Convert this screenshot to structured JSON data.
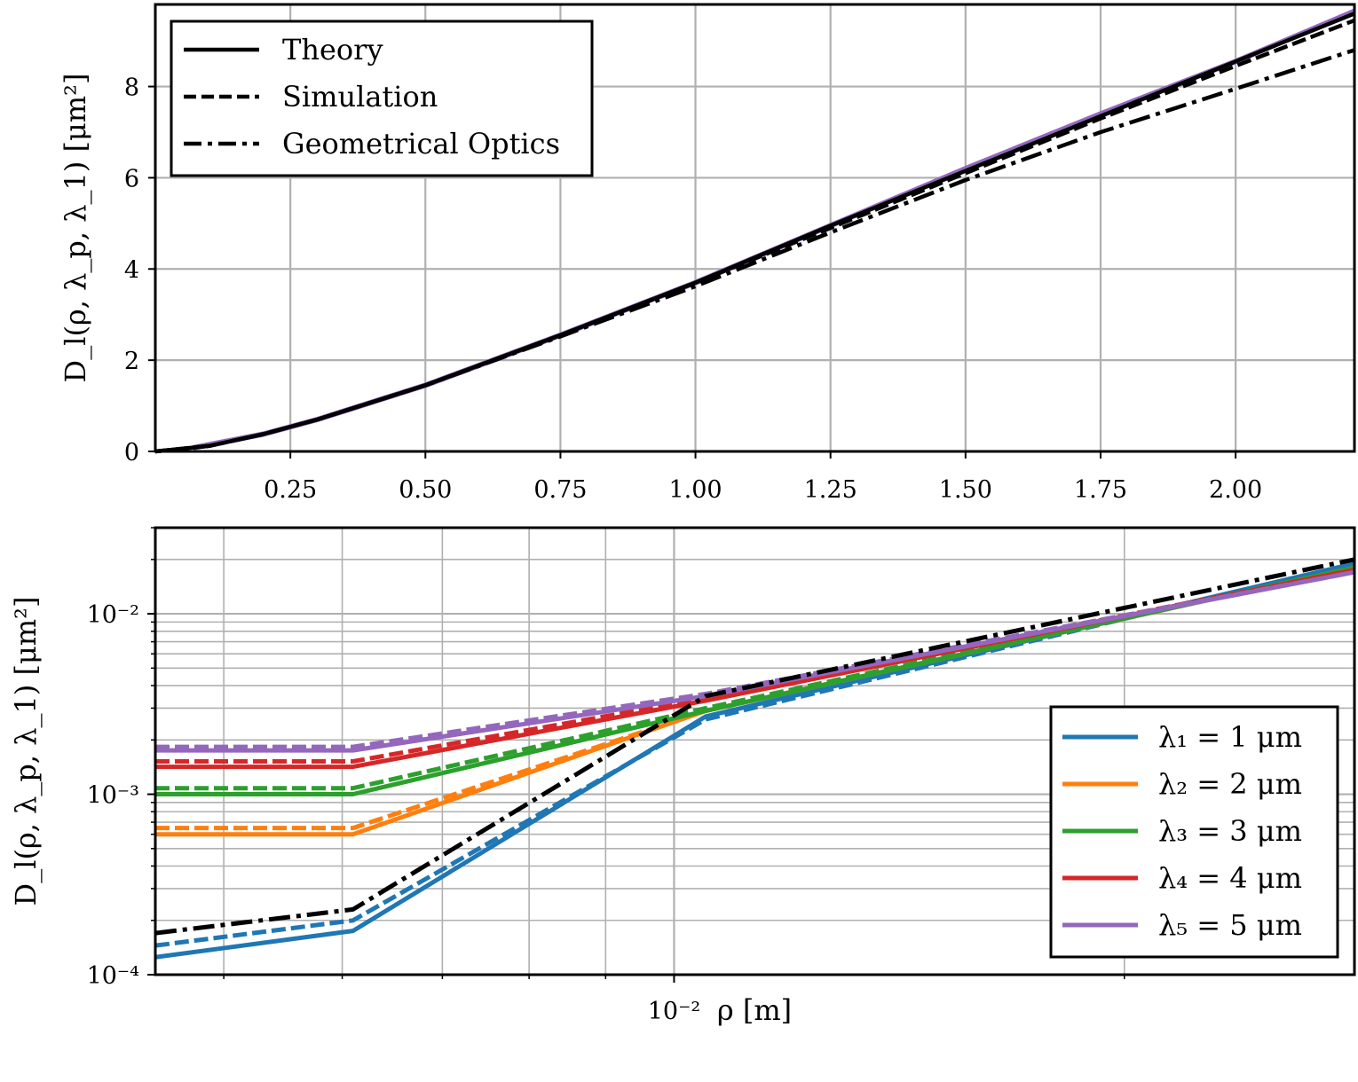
{
  "figure": {
    "top": {
      "ylabel": "D_l(ρ, λ_p, λ_1) [μm²]",
      "xtick_labels": [
        "0.25",
        "0.50",
        "0.75",
        "1.00",
        "1.25",
        "1.50",
        "1.75",
        "2.00"
      ],
      "ytick_labels": [
        "0",
        "2",
        "4",
        "6",
        "8"
      ]
    },
    "bottom": {
      "ylabel": "D_l(ρ, λ_p, λ_1) [μm²]",
      "xlabel": "ρ [m]",
      "xtick_labels": [
        "10⁻²"
      ],
      "ytick_labels": [
        "10⁻⁴",
        "10⁻³",
        "10⁻²"
      ]
    }
  },
  "legend_style": {
    "entries": [
      {
        "label": "Theory",
        "dash": "solid"
      },
      {
        "label": "Simulation",
        "dash": "dashed"
      },
      {
        "label": "Geometrical Optics",
        "dash": "dashdot"
      }
    ]
  },
  "legend_wavelength": {
    "entries": [
      {
        "label": "λ₁ = 1 μm",
        "color": "#1f77b4"
      },
      {
        "label": "λ₂ = 2 μm",
        "color": "#ff7f0e"
      },
      {
        "label": "λ₃ = 3 μm",
        "color": "#2ca02c"
      },
      {
        "label": "λ₄ = 4 μm",
        "color": "#d62728"
      },
      {
        "label": "λ₅ = 5 μm",
        "color": "#9467bd"
      }
    ]
  },
  "chart_data": [
    {
      "type": "line",
      "xlim": [
        0,
        2.22
      ],
      "ylim": [
        0,
        9.8
      ],
      "grid": true,
      "legend": "top-left",
      "series": [
        {
          "name": "Theory",
          "style": "solid",
          "color": "#000000",
          "x": [
            0,
            0.1,
            0.2,
            0.3,
            0.5,
            0.75,
            1.0,
            1.25,
            1.5,
            1.75,
            2.0,
            2.22
          ],
          "y": [
            0,
            0.12,
            0.38,
            0.7,
            1.45,
            2.55,
            3.7,
            4.95,
            6.15,
            7.35,
            8.55,
            9.6
          ]
        },
        {
          "name": "Simulation",
          "style": "dashed",
          "color": "#000000",
          "x": [
            0,
            0.1,
            0.2,
            0.3,
            0.5,
            0.75,
            1.0,
            1.25,
            1.5,
            1.75,
            2.0,
            2.22
          ],
          "y": [
            0,
            0.12,
            0.38,
            0.7,
            1.45,
            2.55,
            3.7,
            4.9,
            6.1,
            7.3,
            8.45,
            9.45
          ]
        },
        {
          "name": "Geometrical Optics",
          "style": "dashdot",
          "color": "#000000",
          "x": [
            0,
            0.1,
            0.2,
            0.3,
            0.5,
            0.75,
            1.0,
            1.25,
            1.5,
            1.75,
            2.0,
            2.22
          ],
          "y": [
            0,
            0.12,
            0.38,
            0.7,
            1.45,
            2.52,
            3.62,
            4.8,
            5.95,
            7.0,
            7.95,
            8.8
          ]
        },
        {
          "name": "λ₅ = 5 μm",
          "style": "solid",
          "color": "#9467bd",
          "x": [
            0.07,
            0.2,
            0.3,
            0.5,
            0.75,
            1.0,
            1.25,
            1.5,
            1.75,
            2.0,
            2.22
          ],
          "y": [
            0.08,
            0.38,
            0.7,
            1.45,
            2.55,
            3.7,
            4.95,
            6.2,
            7.4,
            8.55,
            9.65
          ]
        }
      ]
    },
    {
      "type": "line",
      "xscale": "log",
      "yscale": "log",
      "xlim": [
        0.0045,
        0.0285
      ],
      "ylim": [
        0.0001,
        0.03
      ],
      "grid": true,
      "legend": "lower-right",
      "x": [
        0.0045,
        0.0061,
        0.0105,
        0.0285
      ],
      "series": [
        {
          "name": "λ₁ = 1 μm",
          "style": "solid",
          "color": "#1f77b4",
          "values": [
            0.000125,
            0.000175,
            0.0027,
            0.019
          ]
        },
        {
          "name": "λ₁ = 1 μm",
          "style": "dashed",
          "color": "#1f77b4",
          "values": [
            0.000145,
            0.0002,
            0.0026,
            0.019
          ]
        },
        {
          "name": "λ₂ = 2 μm",
          "style": "solid",
          "color": "#ff7f0e",
          "values": [
            0.0006,
            0.0006,
            0.0029,
            0.018
          ]
        },
        {
          "name": "λ₂ = 2 μm",
          "style": "dashed",
          "color": "#ff7f0e",
          "values": [
            0.00065,
            0.00065,
            0.0029,
            0.018
          ]
        },
        {
          "name": "λ₃ = 3 μm",
          "style": "solid",
          "color": "#2ca02c",
          "values": [
            0.001,
            0.001,
            0.0029,
            0.018
          ]
        },
        {
          "name": "λ₃ = 3 μm",
          "style": "dashed",
          "color": "#2ca02c",
          "values": [
            0.00108,
            0.00108,
            0.003,
            0.018
          ]
        },
        {
          "name": "λ₄ = 4 μm",
          "style": "solid",
          "color": "#d62728",
          "values": [
            0.00142,
            0.00142,
            0.0033,
            0.0175
          ]
        },
        {
          "name": "λ₄ = 4 μm",
          "style": "dashed",
          "color": "#d62728",
          "values": [
            0.00152,
            0.00152,
            0.0034,
            0.0175
          ]
        },
        {
          "name": "λ₅ = 5 μm",
          "style": "solid",
          "color": "#9467bd",
          "values": [
            0.00175,
            0.00175,
            0.0035,
            0.017
          ]
        },
        {
          "name": "λ₅ = 5 μm",
          "style": "dashed",
          "color": "#9467bd",
          "values": [
            0.00183,
            0.00183,
            0.0036,
            0.017
          ]
        },
        {
          "name": "Geometrical Optics",
          "style": "dashdot",
          "color": "#000000",
          "values": [
            0.00017,
            0.00023,
            0.0035,
            0.02
          ]
        }
      ]
    }
  ]
}
